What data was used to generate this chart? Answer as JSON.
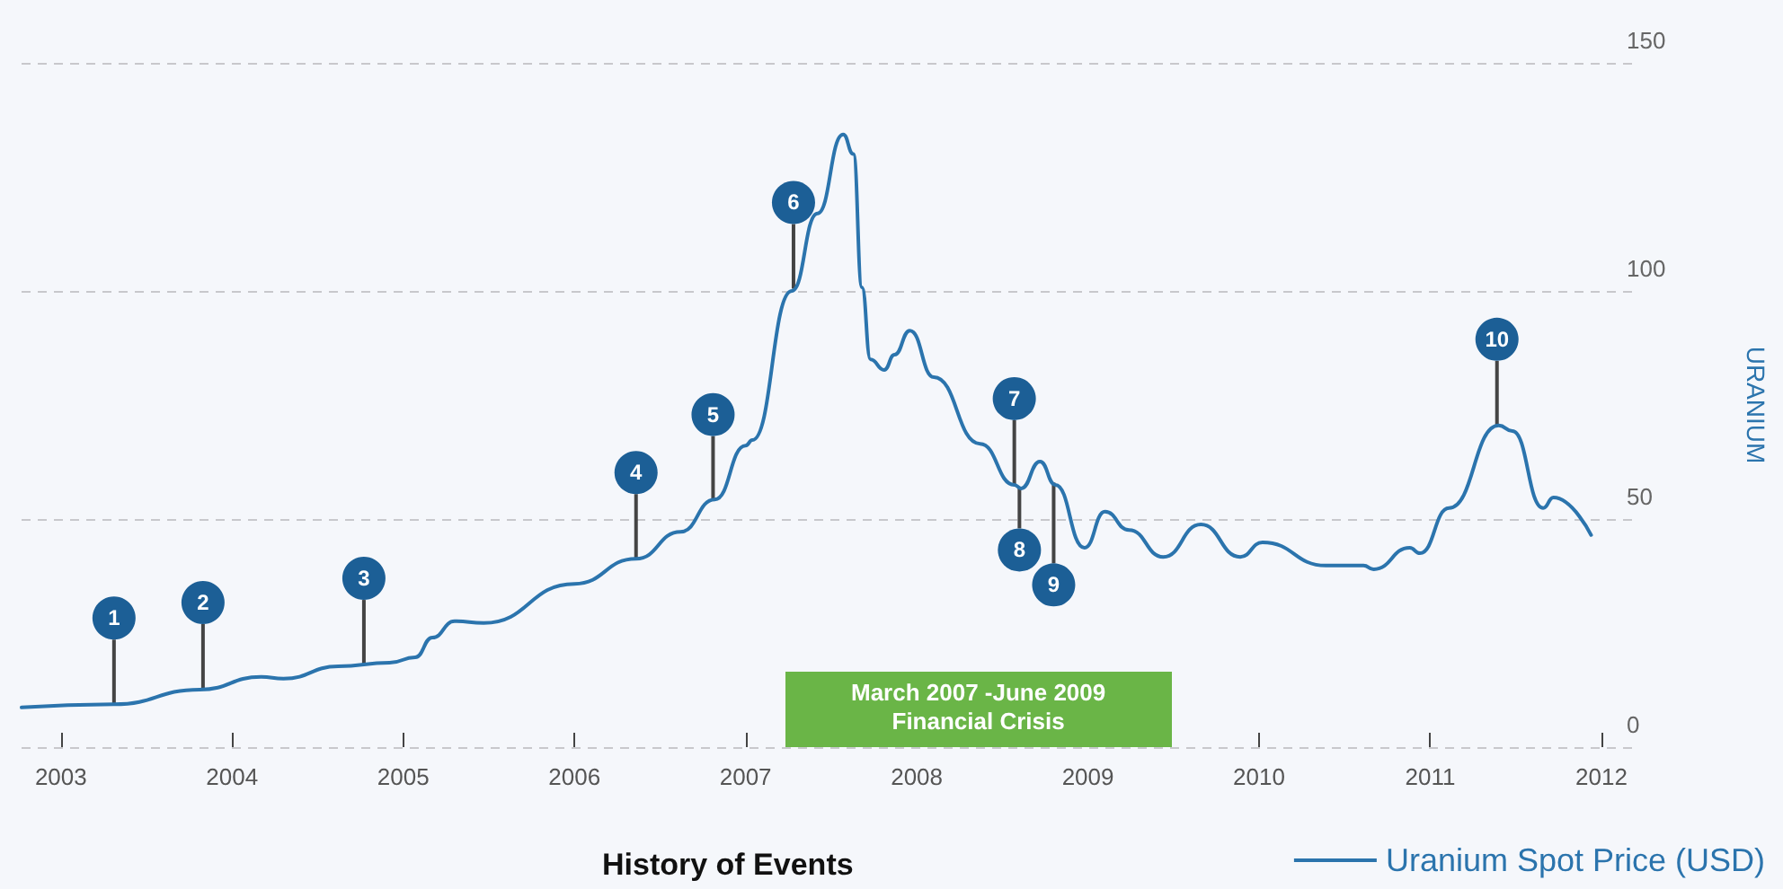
{
  "chart_data": {
    "type": "line",
    "title": "History of Events",
    "ylabel": "URANIUM",
    "x": [
      2002.77,
      2003.31,
      2003.81,
      2004.17,
      2004.3,
      2004.62,
      2004.92,
      2005.07,
      2005.17,
      2005.3,
      2005.47,
      2006.0,
      2006.36,
      2006.62,
      2006.82,
      2007.0,
      2007.04,
      2007.27,
      2007.42,
      2007.57,
      2007.63,
      2007.68,
      2007.73,
      2007.81,
      2007.87,
      2007.96,
      2008.1,
      2008.37,
      2008.57,
      2008.61,
      2008.72,
      2008.81,
      2008.98,
      2009.1,
      2009.24,
      2009.44,
      2009.66,
      2009.89,
      2010.02,
      2010.39,
      2010.61,
      2010.67,
      2010.88,
      2010.94,
      2011.11,
      2011.4,
      2011.48,
      2011.66,
      2011.72,
      2011.94
    ],
    "series": [
      {
        "name": "Uranium Spot Price (USD)",
        "color": "#2b74ad",
        "values": [
          8.7,
          9.4,
          12.6,
          15.4,
          15,
          17.7,
          18.5,
          19.7,
          24,
          27.6,
          27.2,
          35.8,
          41.3,
          47.2,
          54.3,
          66.1,
          67.3,
          100,
          117,
          134.3,
          130,
          100.8,
          85,
          82.7,
          86,
          91.3,
          81.1,
          66.5,
          57.5,
          56.7,
          62.6,
          57.5,
          43.7,
          51.6,
          47.6,
          41.7,
          48.8,
          41.7,
          44.9,
          39.8,
          39.8,
          39,
          43.7,
          42.5,
          52.4,
          70.5,
          69.3,
          52.4,
          54.7,
          46.5
        ]
      }
    ],
    "xlim": [
      2002.77,
      2012.2
    ],
    "xticks": [
      2003,
      2004,
      2005,
      2006,
      2007,
      2008,
      2009,
      2010,
      2011,
      2012
    ],
    "ylim": [
      0,
      150
    ],
    "yticks": [
      0,
      50,
      100,
      150
    ],
    "annotations": [
      {
        "text": "1",
        "x": 2003.31,
        "y": 9.4
      },
      {
        "text": "2",
        "x": 2003.83,
        "y": 12.8
      },
      {
        "text": "3",
        "x": 2004.77,
        "y": 18.1
      },
      {
        "text": "4",
        "x": 2006.36,
        "y": 41.3
      },
      {
        "text": "5",
        "x": 2006.81,
        "y": 54
      },
      {
        "text": "6",
        "x": 2007.28,
        "y": 100.5
      },
      {
        "text": "7",
        "x": 2008.57,
        "y": 57.5
      },
      {
        "text": "8",
        "x": 2008.6,
        "y": 57
      },
      {
        "text": "9",
        "x": 2008.8,
        "y": 58
      },
      {
        "text": "10",
        "x": 2011.39,
        "y": 70.5
      }
    ],
    "bands": [
      {
        "axis": "x",
        "from": 2007.23,
        "to": 2009.49,
        "label": "March 2007 -June 2009 Financial Crisis",
        "color": "#6ab547"
      }
    ],
    "grid": "y",
    "legend": "bottom right",
    "marker": "none",
    "line_style": "solid"
  }
}
